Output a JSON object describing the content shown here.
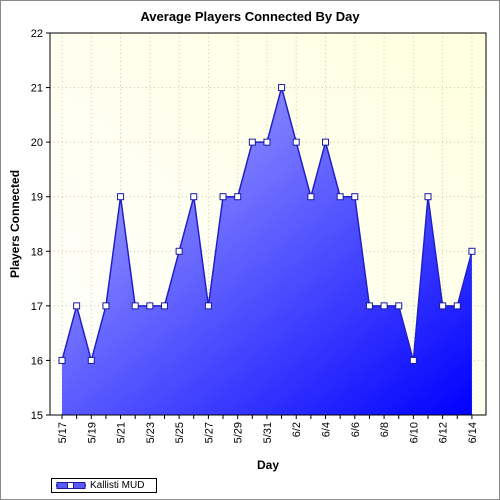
{
  "chart_data": {
    "type": "area",
    "title": "Average Players Connected By Day",
    "xlabel": "Day",
    "ylabel": "Players Connected",
    "ylim": [
      15,
      22
    ],
    "yticks": [
      15,
      16,
      17,
      18,
      19,
      20,
      21,
      22
    ],
    "xtick_labels": [
      "5/17",
      "5/19",
      "5/21",
      "5/23",
      "5/25",
      "5/27",
      "5/29",
      "5/31",
      "6/2",
      "6/4",
      "6/6",
      "6/8",
      "6/10",
      "6/12",
      "6/14"
    ],
    "x": [
      "5/17",
      "5/18",
      "5/19",
      "5/20",
      "5/21",
      "5/22",
      "5/23",
      "5/24",
      "5/25",
      "5/26",
      "5/27",
      "5/28",
      "5/29",
      "5/30",
      "5/31",
      "6/1",
      "6/2",
      "6/3",
      "6/4",
      "6/5",
      "6/6",
      "6/7",
      "6/8",
      "6/9",
      "6/10",
      "6/11",
      "6/12",
      "6/13",
      "6/14"
    ],
    "series": [
      {
        "name": "Kallisti MUD",
        "values": [
          16,
          17,
          16,
          17,
          19,
          17,
          17,
          17,
          18,
          19,
          17,
          19,
          19,
          20,
          20,
          21,
          20,
          19,
          20,
          19,
          19,
          17,
          17,
          17,
          16,
          19,
          17,
          17,
          18
        ]
      }
    ],
    "grid": true,
    "legend": "bottom-left",
    "colors": {
      "plot_bg_light": "#ffffe0",
      "plot_bg_mid": "#fdfdf2",
      "fill_light": "#b4b4ff",
      "fill_dark": "#0000ff",
      "line": "#2020c8",
      "marker_fill": "#ffffff",
      "marker_stroke": "#1a1aa0"
    }
  }
}
